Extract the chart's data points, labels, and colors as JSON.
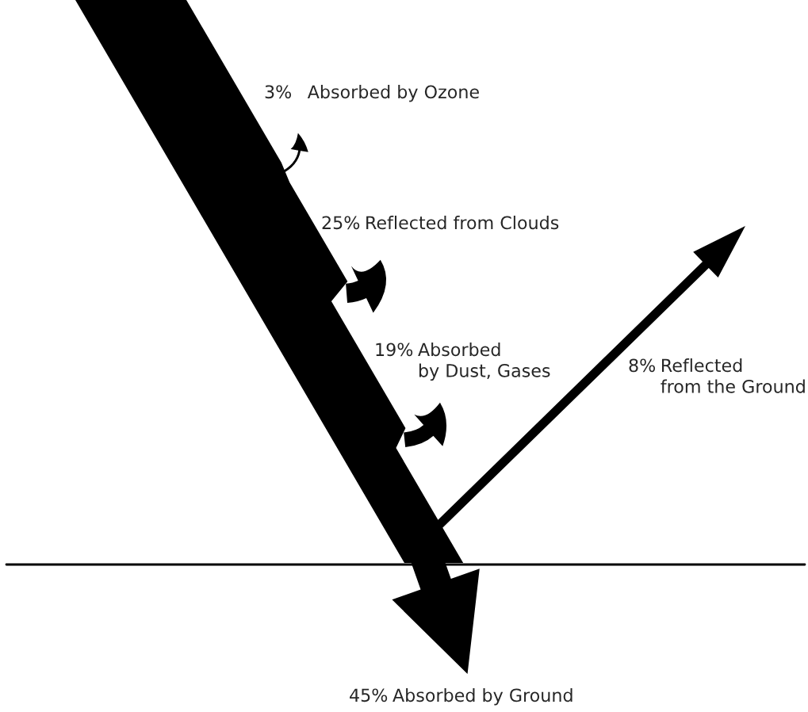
{
  "chart_data": {
    "type": "other",
    "categories": [
      "Absorbed by Ozone",
      "Reflected from Clouds",
      "Absorbed\nby Dust, Gases",
      "Reflected\nfrom the Ground",
      "Absorbed by Ground"
    ],
    "values": [
      3,
      25,
      19,
      8,
      45
    ],
    "value_labels": [
      "3%",
      "25%",
      "19%",
      "8%",
      "45%"
    ],
    "color": "#000000"
  }
}
